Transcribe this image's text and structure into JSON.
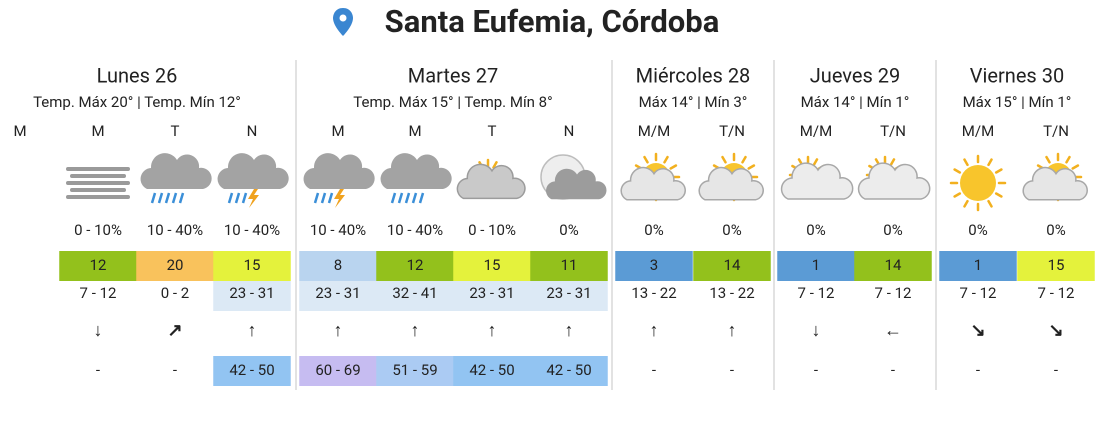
{
  "header": {
    "title": "Santa Eufemia, Córdoba"
  },
  "days": [
    {
      "name": "Lunes 26",
      "summary": "Temp. Máx 20° | Temp. Mín 12°",
      "periods": [
        {
          "label": "M"
        },
        {
          "label": "M",
          "precip": "0 - 10%",
          "temp": 12,
          "temp_color": "#93c11c",
          "wind": "7 - 12",
          "wind_dir": "↓",
          "gust": "-"
        },
        {
          "label": "T",
          "precip": "10 - 40%",
          "temp": 20,
          "temp_color": "#f9c25c",
          "wind": "0 - 2",
          "wind_dir": "↗",
          "gust": "-"
        },
        {
          "label": "N",
          "precip": "10 - 40%",
          "temp": 15,
          "temp_color": "#e4f23c",
          "wind": "23 - 31",
          "wind_color": "#dce9f5",
          "wind_dir": "↑",
          "gust": "42 - 50",
          "gust_color": "#92c4f2"
        }
      ]
    },
    {
      "name": "Martes 27",
      "summary": "Temp. Máx 15° | Temp. Mín 8°",
      "periods": [
        {
          "label": "M",
          "precip": "10 - 40%",
          "temp": 8,
          "temp_color": "#b9d4ef",
          "wind": "23 - 31",
          "wind_color": "#dce9f5",
          "wind_dir": "↑",
          "gust": "60 - 69",
          "gust_color": "#c6bcf1"
        },
        {
          "label": "M",
          "precip": "10 - 40%",
          "temp": 12,
          "temp_color": "#93c11c",
          "wind": "32 - 41",
          "wind_color": "#dce9f5",
          "wind_dir": "↑",
          "gust": "51 - 59",
          "gust_color": "#abcbf3"
        },
        {
          "label": "T",
          "precip": "0 - 10%",
          "temp": 15,
          "temp_color": "#e4f23c",
          "wind": "23 - 31",
          "wind_color": "#dce9f5",
          "wind_dir": "↑",
          "gust": "42 - 50",
          "gust_color": "#92c4f2"
        },
        {
          "label": "N",
          "precip": "0%",
          "temp": 11,
          "temp_color": "#93c11c",
          "wind": "23 - 31",
          "wind_color": "#dce9f5",
          "wind_dir": "↑",
          "gust": "42 - 50",
          "gust_color": "#92c4f2"
        }
      ]
    },
    {
      "name": "Miércoles 28",
      "summary": "Máx 14° | Mín 3°",
      "periods": [
        {
          "label": "M/M",
          "precip": "0%",
          "temp": 3,
          "temp_color": "#5b9bd5",
          "wind": "13 - 22",
          "wind_dir": "↑",
          "gust": "-"
        },
        {
          "label": "T/N",
          "precip": "0%",
          "temp": 14,
          "temp_color": "#93c11c",
          "wind": "13 - 22",
          "wind_dir": "↑",
          "gust": "-"
        }
      ]
    },
    {
      "name": "Jueves 29",
      "summary": "Máx 14° | Mín 1°",
      "periods": [
        {
          "label": "M/M",
          "precip": "0%",
          "temp": 1,
          "temp_color": "#5b9bd5",
          "wind": "7 - 12",
          "wind_dir": "↓",
          "gust": "-"
        },
        {
          "label": "T/N",
          "precip": "0%",
          "temp": 14,
          "temp_color": "#93c11c",
          "wind": "7 - 12",
          "wind_dir": "←",
          "gust": "-"
        }
      ]
    },
    {
      "name": "Viernes 30",
      "summary": "Máx 15° | Mín 1°",
      "periods": [
        {
          "label": "M/M",
          "precip": "0%",
          "temp": 1,
          "temp_color": "#5b9bd5",
          "wind": "7 - 12",
          "wind_dir": "↘",
          "gust": "-"
        },
        {
          "label": "T/N",
          "precip": "0%",
          "temp": 15,
          "temp_color": "#e4f23c",
          "wind": "7 - 12",
          "wind_dir": "↘",
          "gust": "-"
        }
      ]
    }
  ]
}
